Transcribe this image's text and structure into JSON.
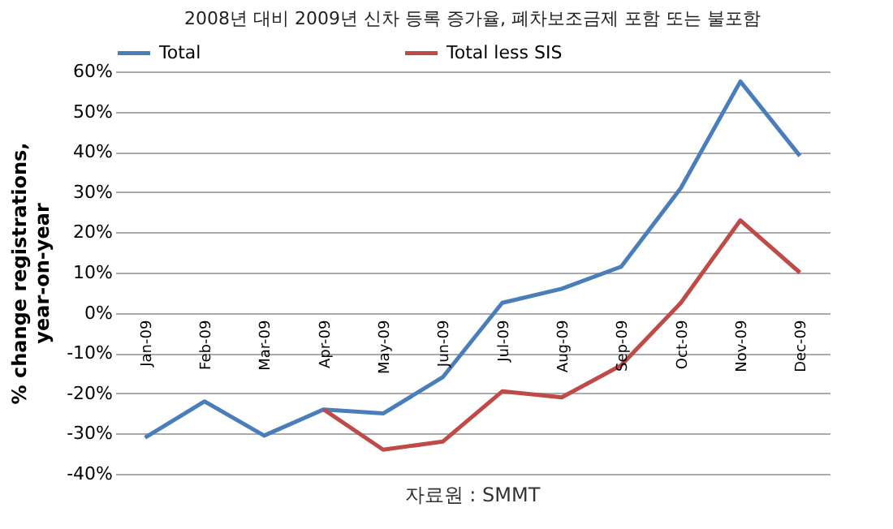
{
  "chart_data": {
    "type": "line",
    "title": "2008년 대비 2009년 신차 등록 증가율, 폐차보조금제 포함 또는 불포함",
    "ylabel": "% change registrations, year-on-year",
    "categories": [
      "Jan-09",
      "Feb-09",
      "Mar-09",
      "Apr-09",
      "May-09",
      "Jun-09",
      "Jul-09",
      "Aug-09",
      "Sep-09",
      "Oct-09",
      "Nov-09",
      "Dec-09"
    ],
    "series": [
      {
        "name": "Total",
        "color": "#4a7ebb",
        "values": [
          -31,
          -22,
          -30.5,
          -24,
          -25,
          -16,
          2.5,
          6,
          11.5,
          31,
          57.5,
          39
        ]
      },
      {
        "name": "Total less SIS",
        "color": "#be4b48",
        "values": [
          null,
          null,
          null,
          -24,
          -34,
          -32,
          -19.5,
          -21,
          -13,
          2.5,
          23,
          10
        ]
      }
    ],
    "ylim": [
      -40,
      60
    ],
    "yticks": [
      {
        "value": -40,
        "label": "-40%"
      },
      {
        "value": -30,
        "label": "-30%"
      },
      {
        "value": -20,
        "label": "-20%"
      },
      {
        "value": -10,
        "label": "-10%"
      },
      {
        "value": 0,
        "label": "0%"
      },
      {
        "value": 10,
        "label": "10%"
      },
      {
        "value": 20,
        "label": "20%"
      },
      {
        "value": 30,
        "label": "30%"
      },
      {
        "value": 40,
        "label": "40%"
      },
      {
        "value": 50,
        "label": "50%"
      },
      {
        "value": 60,
        "label": "60%"
      }
    ],
    "grid": "y",
    "legend": "top",
    "marker": "none",
    "line_style": "solid",
    "annotations": [
      "자료원 : SMMT"
    ]
  }
}
